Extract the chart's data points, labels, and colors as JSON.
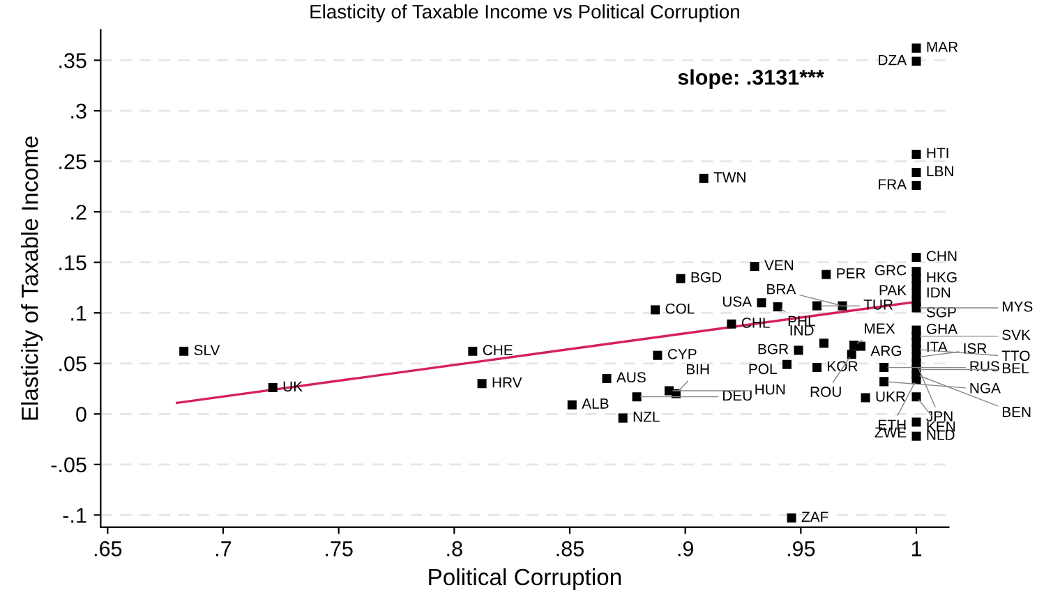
{
  "chart_data": {
    "type": "scatter",
    "title": "Elasticity of Taxable Income vs Political Corruption",
    "xlabel": "Political Corruption",
    "ylabel": "Elasticity of Taxable Income",
    "annotations": [
      "slope: .3131***"
    ],
    "xlim": [
      0.647,
      1.014
    ],
    "ylim": [
      -0.112,
      0.38
    ],
    "xticks": [
      {
        "value": 0.65,
        "label": ".65"
      },
      {
        "value": 0.7,
        "label": ".7"
      },
      {
        "value": 0.75,
        "label": ".75"
      },
      {
        "value": 0.8,
        "label": ".8"
      },
      {
        "value": 0.85,
        "label": ".85"
      },
      {
        "value": 0.9,
        "label": ".9"
      },
      {
        "value": 0.95,
        "label": ".95"
      },
      1
    ],
    "yticks": [
      {
        "value": -0.1,
        "label": "-.1"
      },
      {
        "value": -0.05,
        "label": "-.05"
      },
      0,
      {
        "value": 0.05,
        "label": ".05"
      },
      {
        "value": 0.1,
        "label": ".1"
      },
      {
        "value": 0.15,
        "label": ".15"
      },
      {
        "value": 0.2,
        "label": ".2"
      },
      {
        "value": 0.25,
        "label": ".25"
      },
      {
        "value": 0.3,
        "label": ".3"
      },
      {
        "value": 0.35,
        "label": ".35"
      }
    ],
    "grid": "y",
    "legend": false,
    "series": [
      {
        "color": "#000000",
        "marker": "square",
        "x": [
          0.683,
          0.7215,
          0.808,
          0.812,
          0.851,
          0.866,
          0.873,
          0.879,
          0.893,
          0.896,
          0.888,
          0.887,
          0.898,
          0.908,
          0.93,
          0.961,
          0.933,
          0.94,
          0.957,
          0.968,
          0.92,
          0.96,
          0.949,
          0.944,
          0.957,
          0.973,
          0.976,
          0.972,
          0.986,
          0.986,
          0.978,
          0.946,
          1,
          1,
          1,
          1,
          1,
          1,
          1,
          1,
          1,
          1,
          1,
          1,
          1,
          1,
          1,
          1,
          1,
          1,
          1,
          1,
          1,
          1,
          1,
          1
        ],
        "values": [
          0.062,
          0.026,
          0.062,
          0.03,
          0.009,
          0.035,
          -0.004,
          0.017,
          0.023,
          0.02,
          0.058,
          0.103,
          0.134,
          0.233,
          0.146,
          0.138,
          0.11,
          0.106,
          0.107,
          0.107,
          0.089,
          0.07,
          0.063,
          0.049,
          0.046,
          0.068,
          0.067,
          0.059,
          0.046,
          0.032,
          0.016,
          -0.103,
          0.362,
          0.349,
          0.257,
          0.239,
          0.226,
          0.155,
          0.141,
          0.134,
          0.127,
          0.119,
          0.111,
          0.105,
          0.083,
          0.077,
          0.071,
          0.064,
          0.056,
          0.05,
          0.044,
          0.039,
          0.034,
          0.017,
          -0.008,
          -0.022
        ],
        "value_labels": [
          "SLV",
          "UK",
          "CHE",
          "HRV",
          "ALB",
          "AUS",
          "NZL",
          "DEU",
          "HUN",
          "BIH",
          "CYP",
          "COL",
          "BGD",
          "TWN",
          "VEN",
          "PER",
          "USA",
          "PHL",
          "TUR",
          "BRA",
          "CHL",
          "IND",
          "BGR",
          "POL",
          "KOR",
          "MEX",
          "ARG",
          "ROU",
          "RUS",
          "NGA",
          "UKR",
          "ZAF",
          "MAR",
          "DZA",
          "HTI",
          "LBN",
          "FRA",
          "CHN",
          "GRC",
          "HKG",
          "PAK",
          "IDN",
          "SGP",
          "MYS",
          "GHA",
          "SVK",
          "ITA",
          "TTO",
          "ISR",
          "JPN",
          "BEL",
          "BEN",
          "ETH",
          "KEN",
          "ZWE",
          "NLD"
        ]
      },
      {
        "type": "line",
        "color": "#d6215b",
        "marker": "none",
        "line_style": "solid",
        "x": [
          0.68,
          1
        ],
        "values": [
          0.011,
          0.111
        ]
      }
    ]
  }
}
